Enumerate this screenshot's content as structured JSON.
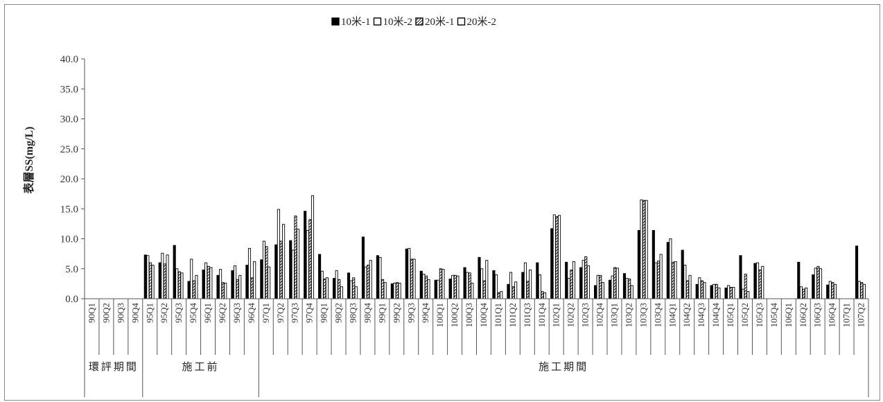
{
  "chart_data": {
    "type": "bar",
    "ylabel": "表層SS(mg/L)",
    "ylim": [
      0,
      40
    ],
    "yticks": [
      "0.0",
      "5.0",
      "10.0",
      "15.0",
      "20.0",
      "25.0",
      "30.0",
      "35.0",
      "40.0"
    ],
    "legend_position": "top-center",
    "categories": [
      "90Q1",
      "90Q2",
      "90Q3",
      "90Q4",
      "95Q1",
      "95Q2",
      "95Q3",
      "95Q4",
      "96Q1",
      "96Q2",
      "96Q3",
      "96Q4",
      "97Q1",
      "97Q2",
      "97Q3",
      "97Q4",
      "98Q1",
      "98Q2",
      "98Q3",
      "98Q4",
      "99Q1",
      "99Q2",
      "99Q3",
      "99Q4",
      "100Q1",
      "100Q2",
      "100Q3",
      "100Q4",
      "101Q1",
      "101Q2",
      "101Q3",
      "101Q4",
      "102Q1",
      "102Q2",
      "102Q3",
      "102Q4",
      "103Q1",
      "103Q2",
      "103Q3",
      "103Q4",
      "104Q1",
      "104Q2",
      "104Q3",
      "104Q4",
      "105Q1",
      "105Q2",
      "105Q3",
      "105Q4",
      "106Q1",
      "106Q2",
      "106Q3",
      "106Q4",
      "107Q1",
      "107Q2"
    ],
    "groups": [
      {
        "label": "環評期間",
        "start": 0,
        "end": 3
      },
      {
        "label": "施工前",
        "start": 4,
        "end": 11
      },
      {
        "label": "施工期間",
        "start": 12,
        "end": 53
      }
    ],
    "series": [
      {
        "name": "10米-1",
        "pattern": "solid",
        "values": [
          null,
          null,
          null,
          null,
          7.3,
          6.0,
          8.9,
          2.9,
          4.8,
          3.9,
          4.7,
          5.6,
          6.5,
          9.0,
          9.7,
          14.6,
          7.4,
          3.4,
          4.3,
          10.3,
          7.2,
          2.5,
          8.3,
          4.6,
          3.1,
          3.3,
          5.2,
          6.9,
          4.7,
          2.4,
          4.4,
          6.0,
          11.7,
          6.1,
          5.2,
          2.2,
          3.1,
          4.2,
          11.4,
          11.4,
          9.4,
          8.1,
          2.4,
          2.2,
          1.8,
          7.2,
          5.9,
          null,
          null,
          6.1,
          4.0,
          2.3,
          null,
          8.8
        ]
      },
      {
        "name": "10米-2",
        "pattern": "hollow",
        "values": [
          null,
          null,
          null,
          null,
          7.2,
          7.6,
          5.0,
          6.6,
          6.0,
          4.9,
          5.5,
          8.4,
          9.6,
          14.9,
          8.1,
          11.4,
          4.6,
          4.7,
          3.0,
          5.3,
          6.9,
          2.6,
          8.4,
          4.1,
          3.1,
          3.9,
          4.4,
          5.0,
          4.0,
          4.4,
          6.0,
          4.0,
          14.0,
          3.4,
          6.4,
          3.9,
          3.8,
          3.4,
          16.5,
          6.0,
          10.0,
          5.6,
          3.5,
          2.4,
          2.2,
          1.6,
          6.0,
          null,
          null,
          2.0,
          5.1,
          2.9,
          null,
          2.9
        ]
      },
      {
        "name": "20米-1",
        "pattern": "hatched",
        "values": [
          null,
          null,
          null,
          null,
          6.0,
          5.8,
          4.5,
          3.0,
          5.4,
          2.7,
          3.2,
          3.5,
          8.7,
          9.6,
          13.8,
          13.2,
          3.3,
          3.2,
          3.5,
          5.6,
          3.2,
          2.7,
          6.6,
          3.8,
          5.0,
          3.9,
          4.3,
          3.0,
          1.0,
          2.0,
          2.9,
          1.2,
          13.7,
          4.8,
          7.0,
          3.9,
          5.2,
          3.3,
          16.4,
          6.3,
          6.1,
          3.0,
          3.0,
          2.4,
          1.9,
          4.1,
          4.8,
          null,
          null,
          1.6,
          5.4,
          2.7,
          null,
          2.7
        ]
      },
      {
        "name": "20米-2",
        "pattern": "hollow",
        "values": [
          null,
          null,
          null,
          null,
          5.6,
          7.3,
          4.3,
          3.9,
          5.2,
          2.6,
          3.9,
          6.2,
          5.3,
          12.4,
          11.6,
          17.2,
          3.5,
          2.0,
          2.0,
          6.4,
          2.7,
          2.6,
          6.6,
          3.2,
          4.9,
          3.8,
          2.6,
          6.4,
          1.2,
          2.8,
          4.8,
          1.0,
          13.9,
          6.2,
          5.5,
          2.7,
          5.1,
          2.2,
          16.4,
          7.4,
          6.2,
          3.9,
          2.7,
          1.8,
          1.9,
          1.2,
          5.4,
          null,
          null,
          1.8,
          5.0,
          2.4,
          null,
          2.4
        ]
      }
    ]
  }
}
